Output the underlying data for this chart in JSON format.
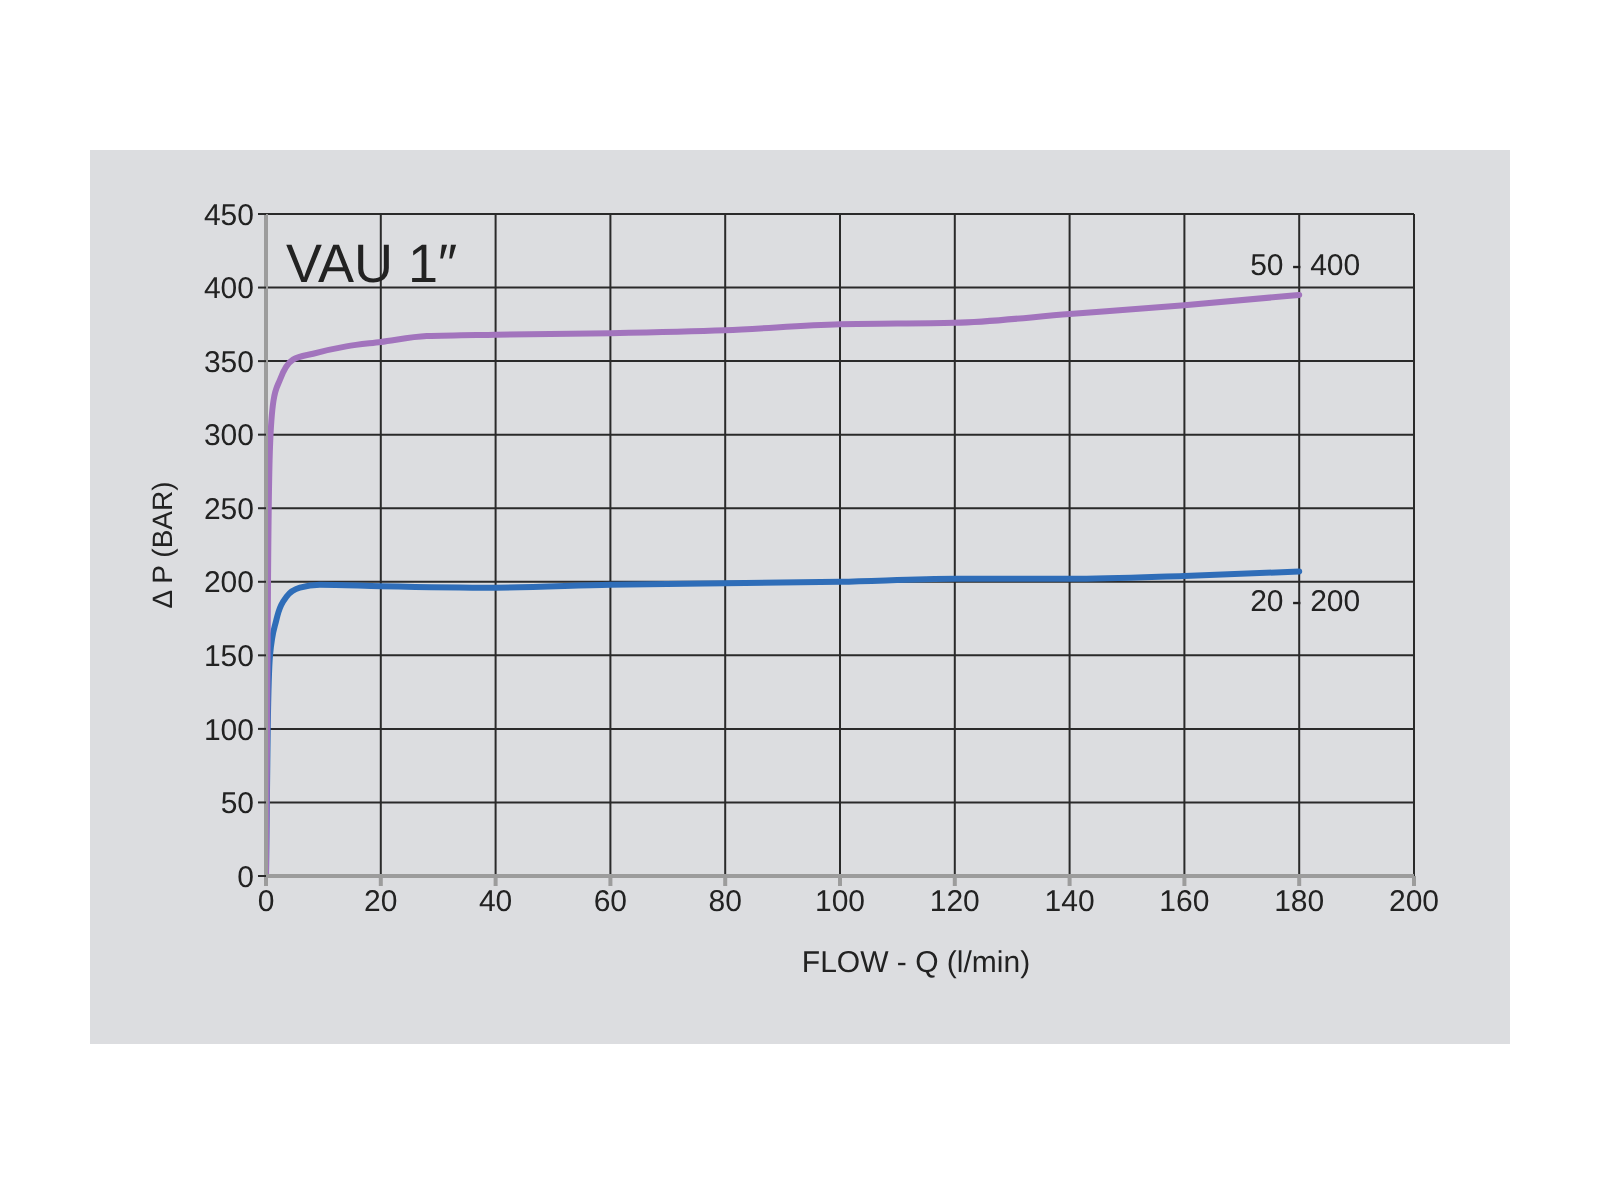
{
  "chart_data": {
    "type": "line",
    "title": "VAU 1″",
    "xlabel": "FLOW - Q (l/min)",
    "ylabel": "Δ P (BAR)",
    "series": [
      {
        "name": "20 - 200",
        "color": "#2f6db8",
        "x": [
          0,
          0.3,
          0.7,
          1.8,
          3.6,
          5.9,
          9.4,
          20,
          40,
          60,
          80,
          100,
          120,
          140,
          160,
          180
        ],
        "values": [
          0,
          100,
          150,
          174,
          190,
          196,
          198,
          197,
          196,
          198,
          199,
          200,
          202,
          202,
          204,
          207
        ]
      },
      {
        "name": "50 - 400",
        "color": "#a274bd",
        "x": [
          0,
          0.2,
          0.35,
          0.7,
          1.3,
          2.4,
          4.7,
          8.2,
          14,
          20,
          28,
          40,
          60,
          80,
          100,
          120,
          140,
          160,
          180
        ],
        "values": [
          0,
          100,
          200,
          292,
          323,
          337,
          351,
          355,
          360,
          363,
          367,
          368,
          369,
          371,
          375,
          376,
          382,
          388,
          395
        ]
      }
    ],
    "xlim": [
      0,
      200
    ],
    "xticks": [
      0,
      20,
      40,
      60,
      80,
      100,
      120,
      140,
      160,
      180,
      200
    ],
    "ylim": [
      0,
      450
    ],
    "yticks": [
      0,
      50,
      100,
      150,
      200,
      250,
      300,
      350,
      400,
      450
    ],
    "grid": true
  }
}
